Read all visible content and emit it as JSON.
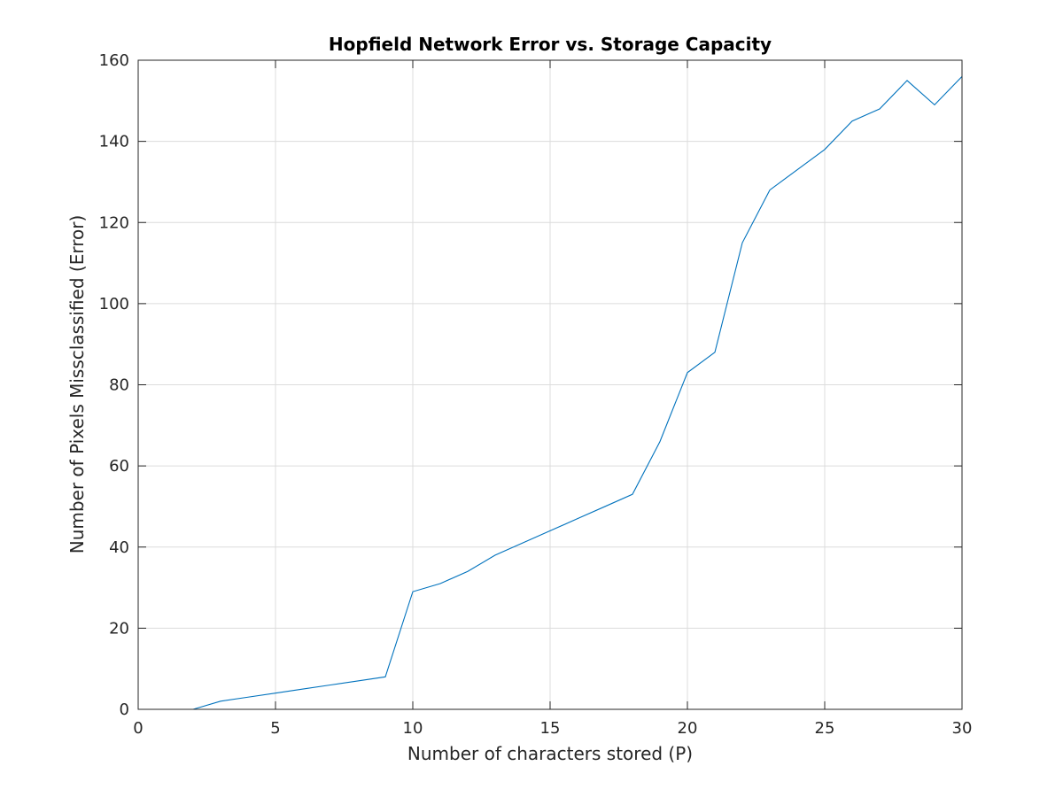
{
  "chart_data": {
    "type": "line",
    "title": "Hopfield Network Error vs. Storage Capacity",
    "xlabel": "Number of characters stored (P)",
    "ylabel": "Number of Pixels Missclassified (Error)",
    "xlim": [
      0,
      30
    ],
    "ylim": [
      0,
      160
    ],
    "xticks": [
      0,
      5,
      10,
      15,
      20,
      25,
      30
    ],
    "yticks": [
      0,
      20,
      40,
      60,
      80,
      100,
      120,
      140,
      160
    ],
    "grid": true,
    "series": [
      {
        "color": "#0072bd",
        "x": [
          1,
          2,
          3,
          4,
          5,
          6,
          7,
          8,
          9,
          10,
          11,
          12,
          13,
          14,
          15,
          16,
          17,
          18,
          19,
          20,
          21,
          22,
          23,
          24,
          25,
          26,
          27,
          28,
          29,
          30
        ],
        "y": [
          0,
          0,
          2,
          3,
          4,
          5,
          6,
          7,
          8,
          29,
          31,
          34,
          38,
          41,
          44,
          47,
          50,
          53,
          66,
          83,
          88,
          115,
          128,
          133,
          138,
          145,
          148,
          155,
          149,
          156
        ]
      }
    ]
  }
}
